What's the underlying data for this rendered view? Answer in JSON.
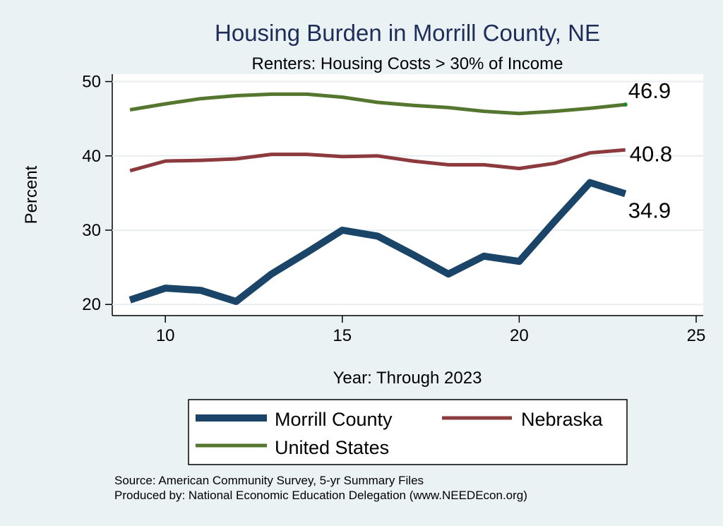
{
  "chart_data": {
    "type": "line",
    "title": "Housing Burden in Morrill County, NE",
    "subtitle": "Renters: Housing Costs > 30% of Income",
    "xlabel": "Year: Through 2023",
    "ylabel": "Percent",
    "xlim": [
      8.5,
      25.2
    ],
    "ylim": [
      18.5,
      51.0
    ],
    "x_ticks": [
      10,
      15,
      20,
      25
    ],
    "x_tick_labels": [
      "10",
      "15",
      "20",
      "25"
    ],
    "y_ticks": [
      20,
      30,
      40,
      50
    ],
    "y_tick_labels": [
      "20",
      "30",
      "40",
      "50"
    ],
    "grid": true,
    "legend_position": "bottom",
    "x": [
      9,
      10,
      11,
      12,
      13,
      14,
      15,
      16,
      17,
      18,
      19,
      20,
      21,
      22,
      23
    ],
    "series": [
      {
        "name": "Morrill County",
        "color": "#1a4468",
        "values": [
          20.6,
          22.2,
          21.9,
          20.4,
          24.1,
          27.0,
          30.0,
          29.2,
          26.7,
          24.1,
          26.5,
          25.8,
          31.2,
          36.4,
          34.9
        ],
        "end_label": "34.9"
      },
      {
        "name": "Nebraska",
        "color": "#8c3a3d",
        "values": [
          38.0,
          39.3,
          39.4,
          39.6,
          40.2,
          40.2,
          39.9,
          40.0,
          39.3,
          38.8,
          38.8,
          38.3,
          39.0,
          40.4,
          40.8
        ],
        "end_label": "40.8"
      },
      {
        "name": "United States",
        "color": "#55762f",
        "values": [
          46.2,
          47.0,
          47.7,
          48.1,
          48.3,
          48.3,
          47.9,
          47.2,
          46.8,
          46.5,
          46.0,
          45.7,
          46.0,
          46.4,
          46.9
        ],
        "end_label": "46.9"
      }
    ],
    "legend": [
      {
        "label": "Morrill County"
      },
      {
        "label": "Nebraska"
      },
      {
        "label": "United States"
      }
    ],
    "source_lines": [
      "Source: American Community Survey, 5-yr Summary Files",
      "Produced by: National Economic Education Delegation (www.NEEDEcon.org)"
    ]
  }
}
